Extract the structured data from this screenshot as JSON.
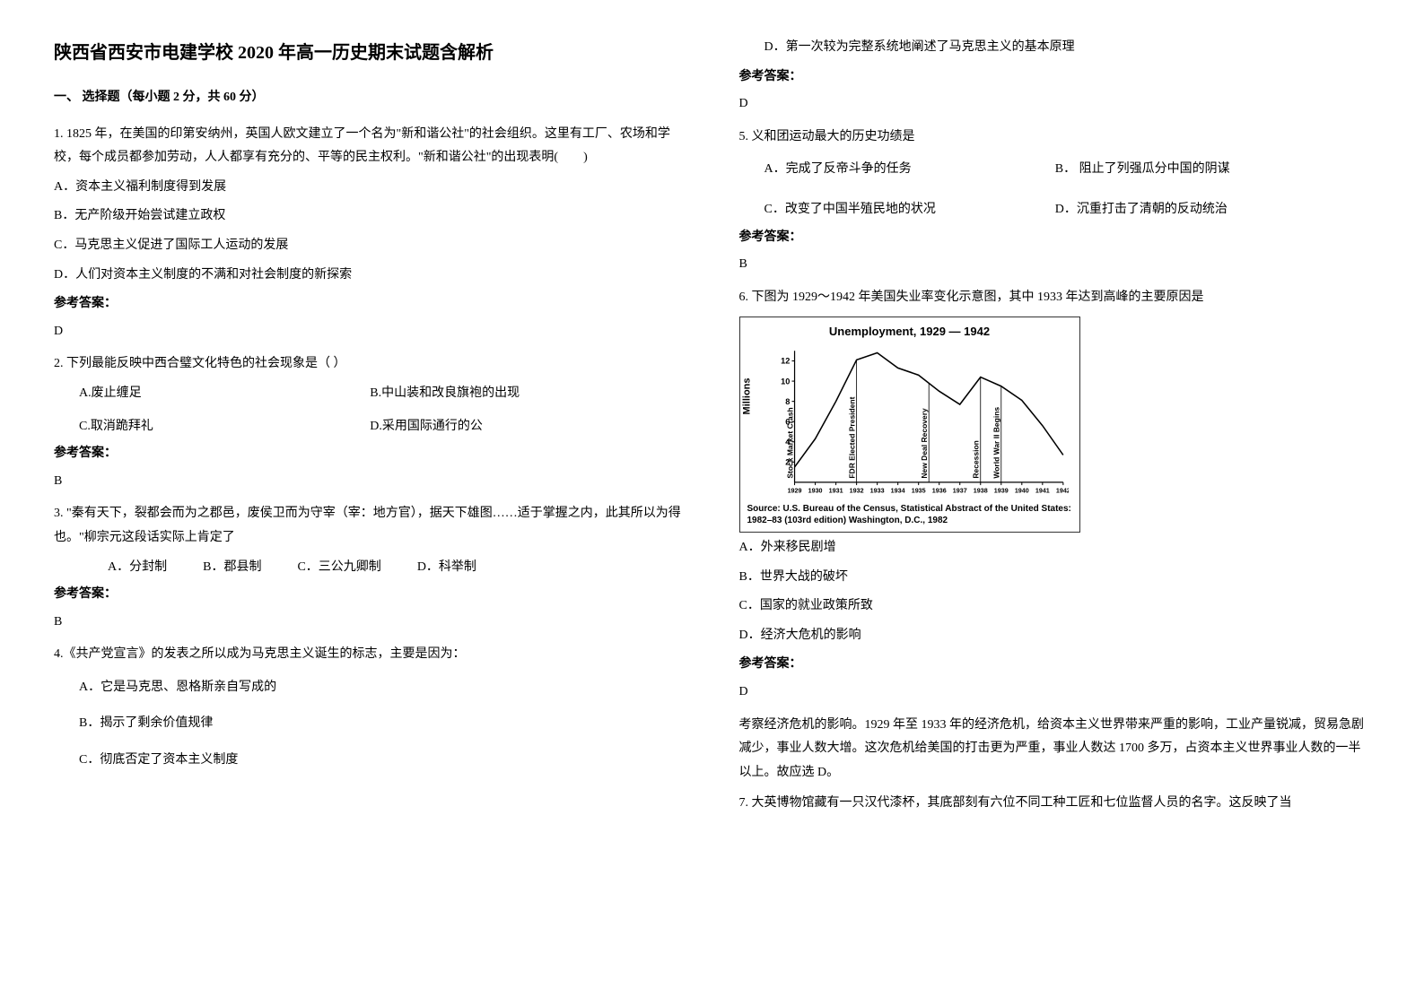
{
  "title": "陕西省西安市电建学校 2020 年高一历史期末试题含解析",
  "section1_header": "一、 选择题（每小题 2 分，共 60 分）",
  "q1": {
    "text": "1. 1825 年，在美国的印第安纳州，英国人欧文建立了一个名为\"新和谐公社\"的社会组织。这里有工厂、农场和学校，每个成员都参加劳动，人人都享有充分的、平等的民主权利。\"新和谐公社\"的出现表明(　　)",
    "optA": "A．资本主义福利制度得到发展",
    "optB": "B．无产阶级开始尝试建立政权",
    "optC": "C．马克思主义促进了国际工人运动的发展",
    "optD": "D．人们对资本主义制度的不满和对社会制度的新探索",
    "label": "参考答案：",
    "answer": "D"
  },
  "q2": {
    "text": "2. 下列最能反映中西合璧文化特色的社会现象是（ ）",
    "optA": "A.废止缠足",
    "optB": "B.中山装和改良旗袍的出现",
    "optC": "C.取消跪拜礼",
    "optD": "D.采用国际通行的公",
    "label": "参考答案：",
    "answer": "B"
  },
  "q3": {
    "text": "3. \"秦有天下，裂都会而为之郡邑，废侯卫而为守宰（宰：地方官），据天下雄图……适于掌握之内，此其所以为得也。\"柳宗元这段话实际上肯定了",
    "optA": "A．分封制",
    "optB": "B．郡县制",
    "optC": "C．三公九卿制",
    "optD": "D．科举制",
    "label": "参考答案：",
    "answer": "B"
  },
  "q4": {
    "text": "4.《共产党宣言》的发表之所以成为马克思主义诞生的标志，主要是因为：",
    "optA": "A．它是马克思、恩格斯亲自写成的",
    "optB": "B．揭示了剩余价值规律",
    "optC": "C．彻底否定了资本主义制度",
    "optD": "D．第一次较为完整系统地阐述了马克思主义的基本原理",
    "label": "参考答案：",
    "answer": "D"
  },
  "q5": {
    "text": "5. 义和团运动最大的历史功绩是",
    "optA": "A．完成了反帝斗争的任务",
    "optB": "B．  阻止了列强瓜分中国的阴谋",
    "optC": "C．改变了中国半殖民地的状况",
    "optD": "D．沉重打击了清朝的反动统治",
    "label": "参考答案：",
    "answer": "B"
  },
  "q6": {
    "text": "6. 下图为 1929～1942 年美国失业率变化示意图，其中 1933 年达到高峰的主要原因是",
    "optA": "A．外来移民剧增",
    "optB": "B．世界大战的破坏",
    "optC": "C．国家的就业政策所致",
    "optD": "D．经济大危机的影响",
    "label": "参考答案：",
    "answer": "D",
    "explanation": "考察经济危机的影响。1929 年至 1933 年的经济危机，给资本主义世界带来严重的影响，工业产量锐减，贸易急剧减少，事业人数大增。这次危机给美国的打击更为严重，事业人数达 1700 多万，占资本主义世界事业人数的一半以上。故应选 D。",
    "chart": {
      "title": "Unemployment, 1929 — 1942",
      "y_label": "Millions",
      "y_ticks": [
        0,
        2,
        4,
        6,
        8,
        10,
        12
      ],
      "x_years": [
        1929,
        1930,
        1931,
        1932,
        1933,
        1934,
        1935,
        1936,
        1937,
        1938,
        1939,
        1940,
        1941,
        1942
      ],
      "values": [
        1.5,
        4.3,
        8.0,
        12.1,
        12.8,
        11.3,
        10.6,
        9.0,
        7.7,
        10.4,
        9.5,
        8.1,
        5.6,
        2.7
      ],
      "annotations": [
        {
          "label": "Stock Market Crash",
          "x": 1929
        },
        {
          "label": "FDR Elected President",
          "x": 1932
        },
        {
          "label": "New Deal Recovery",
          "x": 1935.5
        },
        {
          "label": "Recession",
          "x": 1938
        },
        {
          "label": "World War II Begins",
          "x": 1939
        }
      ],
      "caption": "Source: U.S. Bureau of the Census, Statistical Abstract of the United States: 1982–83 (103rd edition) Washington, D.C., 1982",
      "bg_color": "#ffffff",
      "line_color": "#000000",
      "axis_color": "#000000",
      "text_color": "#000000",
      "line_width": 1.5,
      "tick_fontsize": 9,
      "title_fontsize": 13,
      "ylim": [
        0,
        13
      ],
      "xlim": [
        1929,
        1942
      ]
    }
  },
  "q7": {
    "text": "7. 大英博物馆藏有一只汉代漆杯，其底部刻有六位不同工种工匠和七位监督人员的名字。这反映了当"
  }
}
